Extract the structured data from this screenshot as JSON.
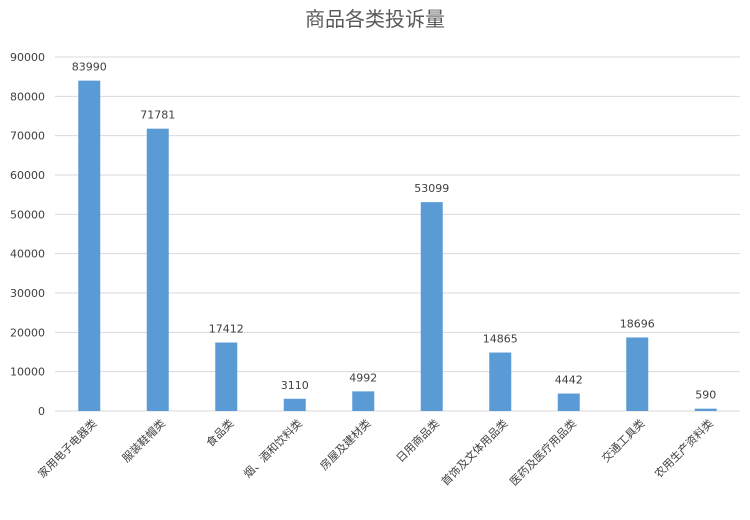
{
  "chart_data": {
    "type": "bar",
    "title": "商品各类投诉量",
    "categories": [
      "家用电子电器类",
      "服装鞋帽类",
      "食品类",
      "烟、酒和饮料类",
      "房屋及建材类",
      "日用商品类",
      "首饰及文体用品类",
      "医药及医疗用品类",
      "交通工具类",
      "农用生产资料类"
    ],
    "values": [
      83990,
      71781,
      17412,
      3110,
      4992,
      53099,
      14865,
      4442,
      18696,
      590
    ],
    "ylim": [
      0,
      90000
    ],
    "yticks": [
      "0",
      "10000",
      "20000",
      "30000",
      "40000",
      "50000",
      "60000",
      "70000",
      "80000",
      "90000"
    ],
    "xlabel": "",
    "ylabel": "",
    "grid": true,
    "legend": "none",
    "bar_color": "#5b9bd5"
  }
}
